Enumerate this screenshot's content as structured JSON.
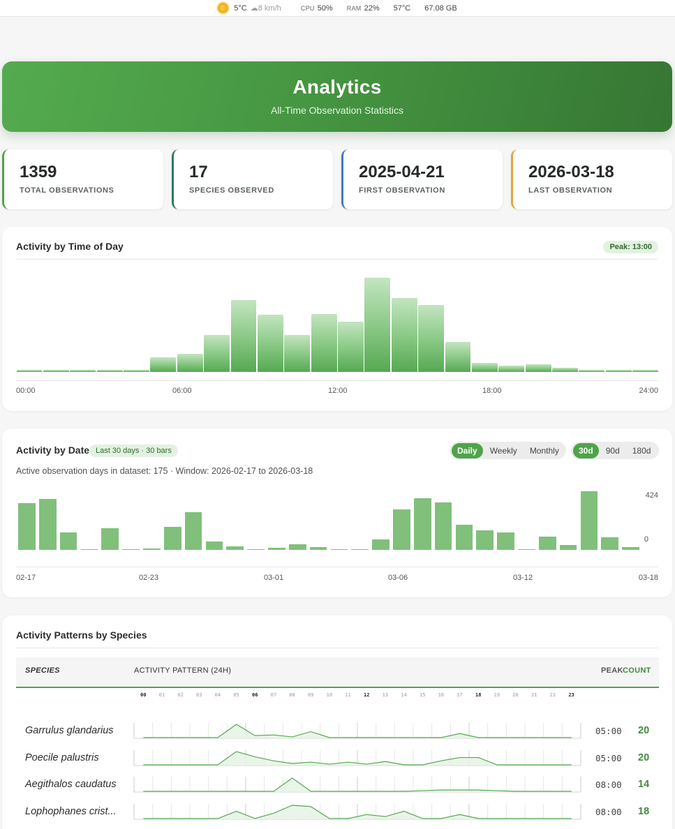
{
  "status": {
    "weather_icon": "sun-icon",
    "temp": "5°C",
    "wind": "☁8 km/h",
    "cpu_label": "CPU",
    "cpu_value": "50%",
    "ram_label": "RAM",
    "ram_value": "22%",
    "cpu_temp": "57°C",
    "disk": "67.08 GB"
  },
  "hero": {
    "title": "Analytics",
    "subtitle": "All-Time Observation Statistics"
  },
  "stats": [
    {
      "value": "1359",
      "label": "TOTAL OBSERVATIONS",
      "color": "#4ea44a"
    },
    {
      "value": "17",
      "label": "SPECIES OBSERVED",
      "color": "#2e7a67"
    },
    {
      "value": "2025-04-21",
      "label": "FIRST OBSERVATION",
      "color": "#3f7bc0"
    },
    {
      "value": "2026-03-18",
      "label": "LAST OBSERVATION",
      "color": "#e7a43a"
    }
  ],
  "time_of_day": {
    "title": "Activity by Time of Day",
    "peak": "Peak: 13:00",
    "axis_labels": [
      "00:00",
      "06:00",
      "12:00",
      "18:00",
      "24:00"
    ]
  },
  "by_date": {
    "title": "Activity by Date",
    "badge": "Last 30 days · 30 bars",
    "info": "Active observation days in dataset: 175 · Window: 2026-02-17 to 2026-03-18",
    "granularity": [
      {
        "label": "Daily",
        "active": true
      },
      {
        "label": "Weekly",
        "active": false
      },
      {
        "label": "Monthly",
        "active": false
      }
    ],
    "range": [
      {
        "label": "30d",
        "active": true
      },
      {
        "label": "90d",
        "active": false
      },
      {
        "label": "180d",
        "active": false
      }
    ],
    "ymax_label": "424",
    "ymin_label": "0",
    "axis_labels": [
      "02-17",
      "02-23",
      "03-01",
      "03-06",
      "03-12",
      "03-18"
    ]
  },
  "species_panel": {
    "title": "Activity Patterns by Species",
    "col_species": "SPECIES",
    "col_pattern": "ACTIVITY PATTERN (24H)",
    "col_peak": "PEAK",
    "col_count": "COUNT",
    "hours": [
      "00",
      "01",
      "02",
      "03",
      "04",
      "05",
      "06",
      "07",
      "08",
      "09",
      "10",
      "11",
      "12",
      "13",
      "14",
      "15",
      "16",
      "17",
      "18",
      "19",
      "20",
      "21",
      "22",
      "23"
    ],
    "rows": [
      {
        "name": "Garrulus glandarius",
        "peak": "05:00",
        "count": "20",
        "pattern": [
          0,
          0,
          0,
          0,
          0,
          1,
          0.15,
          0.2,
          0.05,
          0.45,
          0,
          0,
          0,
          0,
          0,
          0,
          0,
          0.3,
          0,
          0,
          0,
          0,
          0,
          0
        ]
      },
      {
        "name": "Poecile palustris",
        "peak": "05:00",
        "count": "20",
        "pattern": [
          0,
          0,
          0,
          0,
          0,
          1,
          0.6,
          0.3,
          0.1,
          0.2,
          0.05,
          0.2,
          0.05,
          0.25,
          0,
          0,
          0.3,
          0.55,
          0.55,
          0,
          0,
          0,
          0,
          0
        ]
      },
      {
        "name": "Aegithalos caudatus",
        "peak": "08:00",
        "count": "14",
        "pattern": [
          0,
          0,
          0,
          0,
          0,
          0,
          0,
          0,
          1,
          0,
          0,
          0,
          0,
          0,
          0,
          0.05,
          0.1,
          0.1,
          0.1,
          0.05,
          0,
          0,
          0,
          0
        ]
      },
      {
        "name": "Lophophanes crist...",
        "peak": "08:00",
        "count": "18",
        "pattern": [
          0,
          0,
          0,
          0,
          0,
          0.55,
          0,
          0.4,
          1,
          0.9,
          0,
          0,
          0.3,
          0.15,
          0.55,
          0,
          0,
          0.3,
          0,
          0,
          0,
          0,
          0,
          0
        ]
      }
    ]
  },
  "chart_data": [
    {
      "type": "bar",
      "title": "Activity by Time of Day",
      "categories": [
        "00:00",
        "01:00",
        "02:00",
        "03:00",
        "04:00",
        "05:00",
        "06:00",
        "07:00",
        "08:00",
        "09:00",
        "10:00",
        "11:00",
        "12:00",
        "13:00",
        "14:00",
        "15:00",
        "16:00",
        "17:00",
        "18:00",
        "19:00",
        "20:00",
        "21:00",
        "22:00",
        "23:00"
      ],
      "values": [
        3,
        3,
        3,
        3,
        3,
        21,
        26,
        53,
        103,
        82,
        53,
        83,
        72,
        135,
        106,
        96,
        43,
        13,
        9,
        11,
        6,
        3,
        3,
        3
      ]
    },
    {
      "type": "bar",
      "title": "Activity by Date",
      "categories": [
        "02-17",
        "02-18",
        "02-19",
        "02-20",
        "02-21",
        "02-22",
        "02-23",
        "02-24",
        "02-25",
        "02-26",
        "02-27",
        "02-28",
        "03-01",
        "03-02",
        "03-03",
        "03-04",
        "03-05",
        "03-06",
        "03-07",
        "03-08",
        "03-09",
        "03-10",
        "03-11",
        "03-12",
        "03-13",
        "03-14",
        "03-15",
        "03-16",
        "03-17",
        "03-18"
      ],
      "values": [
        340,
        366,
        127,
        5,
        157,
        3,
        10,
        168,
        274,
        61,
        27,
        6,
        15,
        42,
        20,
        0,
        5,
        76,
        293,
        372,
        342,
        181,
        139,
        128,
        6,
        97,
        37,
        424,
        93,
        20
      ],
      "ylim": [
        0,
        424
      ]
    }
  ]
}
